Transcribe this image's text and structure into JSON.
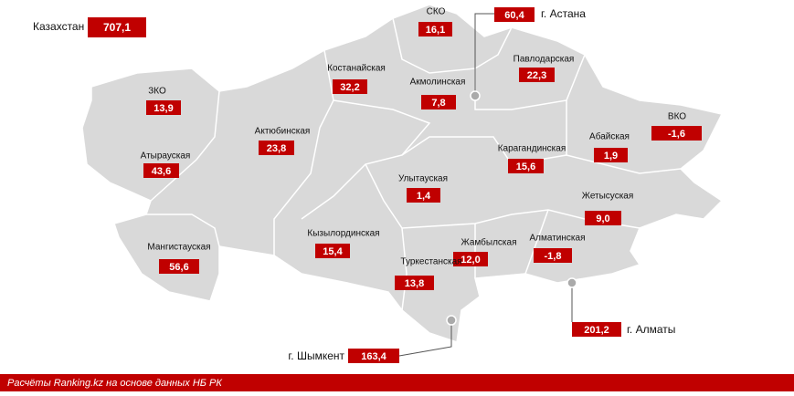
{
  "total": {
    "name": "Казахстан",
    "value": "707,1"
  },
  "regions": [
    {
      "name": "СКО",
      "value": "16,1"
    },
    {
      "name": "Костанайская",
      "value": "32,2"
    },
    {
      "name": "Павлодарская",
      "value": "22,3"
    },
    {
      "name": "ЗКО",
      "value": "13,9"
    },
    {
      "name": "Акмолинская",
      "value": "7,8"
    },
    {
      "name": "Актюбинская",
      "value": "23,8"
    },
    {
      "name": "Абайская",
      "value": "1,9"
    },
    {
      "name": "ВКО",
      "value": "-1,6"
    },
    {
      "name": "Атырауская",
      "value": "43,6"
    },
    {
      "name": "Карагандинская",
      "value": "15,6"
    },
    {
      "name": "Улытауская",
      "value": "1,4"
    },
    {
      "name": "Жетысуская",
      "value": "9,0"
    },
    {
      "name": "Мангистауская",
      "value": "56,6"
    },
    {
      "name": "Кызылординская",
      "value": "15,4"
    },
    {
      "name": "Жамбылская",
      "value": "12,0"
    },
    {
      "name": "Алматинская",
      "value": "-1,8"
    },
    {
      "name": "Туркестанская",
      "value": "13,8"
    }
  ],
  "cities": [
    {
      "name": "г. Астана",
      "value": "60,4"
    },
    {
      "name": "г. Шымкент",
      "value": "163,4"
    },
    {
      "name": "г. Алматы",
      "value": "201,2"
    }
  ],
  "footer": "Расчёты Ranking.kz на основе данных НБ РК"
}
